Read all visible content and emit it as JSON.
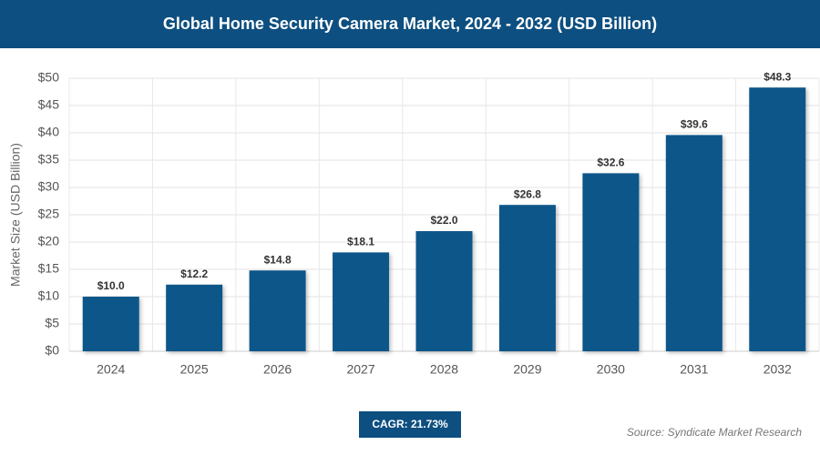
{
  "chart_data": {
    "type": "bar",
    "title": "Global Home Security Camera Market, 2024 - 2032 (USD Billion)",
    "y_label": "Market Size (USD Billion)",
    "categories": [
      "2024",
      "2025",
      "2026",
      "2027",
      "2028",
      "2029",
      "2030",
      "2031",
      "2032"
    ],
    "values": [
      10.0,
      12.2,
      14.8,
      18.1,
      22.0,
      26.8,
      32.6,
      39.6,
      48.3
    ],
    "value_labels": [
      "$10.0",
      "$12.2",
      "$14.8",
      "$18.1",
      "$22.0",
      "$26.8",
      "$32.6",
      "$39.6",
      "$48.3"
    ],
    "color": "#0d5689",
    "ylim": [
      0,
      50
    ],
    "yticks": [
      {
        "value": 0,
        "label": "$0"
      },
      {
        "value": 5,
        "label": "$5"
      },
      {
        "value": 10,
        "label": "$10"
      },
      {
        "value": 15,
        "label": "$15"
      },
      {
        "value": 20,
        "label": "$20"
      },
      {
        "value": 25,
        "label": "$25"
      },
      {
        "value": 30,
        "label": "$30"
      },
      {
        "value": 35,
        "label": "$35"
      },
      {
        "value": 40,
        "label": "$40"
      },
      {
        "value": 45,
        "label": "$45"
      },
      {
        "value": 50,
        "label": "$50"
      }
    ],
    "grid": true,
    "cagr": "CAGR: 21.73%",
    "source": "Source: Syndicate Market Research"
  }
}
